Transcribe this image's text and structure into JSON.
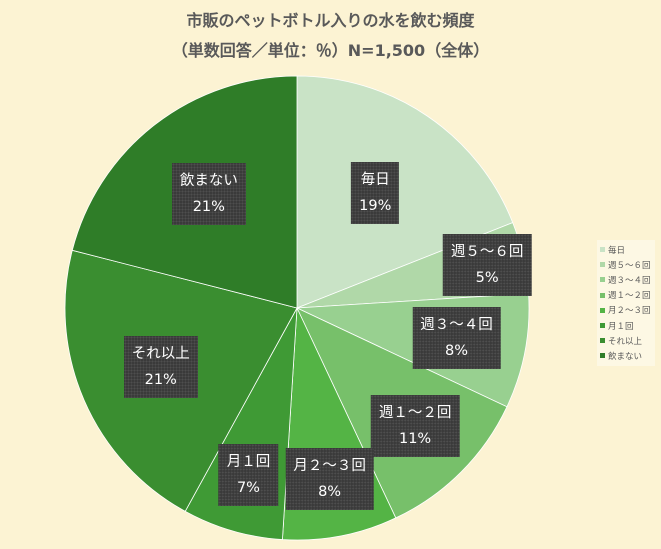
{
  "title": {
    "line1": "市販のペットボトル入りの水を飲む頻度",
    "line2": "（単数回答／単位：％）N=1,500（全体）"
  },
  "chart_data": {
    "type": "pie",
    "categories": [
      "毎日",
      "週５～６回",
      "週３～４回",
      "週１～２回",
      "月２～３回",
      "月１回",
      "それ以上",
      "飲まない"
    ],
    "values": [
      19,
      5,
      8,
      11,
      8,
      7,
      21,
      21
    ],
    "value_labels": [
      "19%",
      "5%",
      "8%",
      "11%",
      "8%",
      "7%",
      "21%",
      "21%"
    ],
    "colors": [
      "#c9e3c6",
      "#b0d8a8",
      "#98d090",
      "#77c06a",
      "#54b445",
      "#3f9a35",
      "#3a8e30",
      "#2f7d28"
    ],
    "legend_entries": [
      "毎日",
      "週５～６回",
      "週３～４回",
      "週１～２回",
      "月２～３回",
      "月１回",
      "それ以上",
      "飲まない"
    ],
    "legend_position": "right",
    "start_angle": "12 o'clock",
    "direction": "clockwise"
  }
}
